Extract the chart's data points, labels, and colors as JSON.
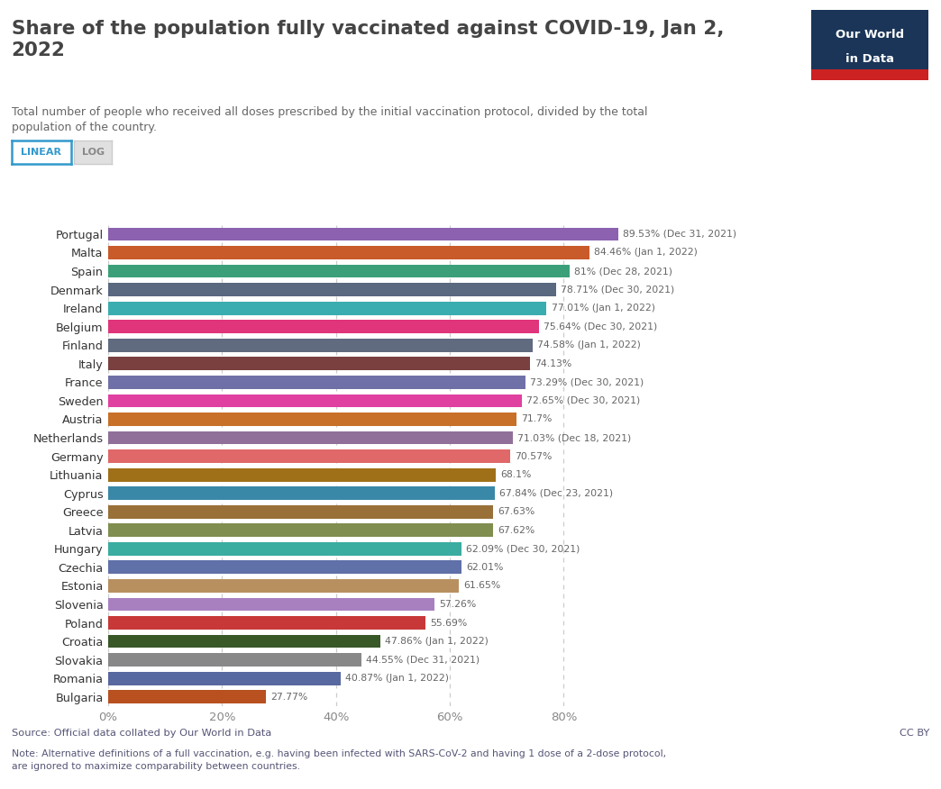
{
  "title": "Share of the population fully vaccinated against COVID-19, Jan 2,\n2022",
  "subtitle": "Total number of people who received all doses prescribed by the initial vaccination protocol, divided by the total\npopulation of the country.",
  "source": "Source: Official data collated by Our World in Data",
  "note": "Note: Alternative definitions of a full vaccination, e.g. having been infected with SARS-CoV-2 and having 1 dose of a 2-dose protocol,\nare ignored to maximize comparability between countries.",
  "cc_by": "CC BY",
  "countries": [
    "Portugal",
    "Malta",
    "Spain",
    "Denmark",
    "Ireland",
    "Belgium",
    "Finland",
    "Italy",
    "France",
    "Sweden",
    "Austria",
    "Netherlands",
    "Germany",
    "Lithuania",
    "Cyprus",
    "Greece",
    "Latvia",
    "Hungary",
    "Czechia",
    "Estonia",
    "Slovenia",
    "Poland",
    "Croatia",
    "Slovakia",
    "Romania",
    "Bulgaria"
  ],
  "values": [
    89.53,
    84.46,
    81.0,
    78.71,
    77.01,
    75.64,
    74.58,
    74.13,
    73.29,
    72.65,
    71.7,
    71.03,
    70.57,
    68.1,
    67.84,
    67.63,
    67.62,
    62.09,
    62.01,
    61.65,
    57.26,
    55.69,
    47.86,
    44.55,
    40.87,
    27.77
  ],
  "labels": [
    "89.53% (Dec 31, 2021)",
    "84.46% (Jan 1, 2022)",
    "81% (Dec 28, 2021)",
    "78.71% (Dec 30, 2021)",
    "77.01% (Jan 1, 2022)",
    "75.64% (Dec 30, 2021)",
    "74.58% (Jan 1, 2022)",
    "74.13%",
    "73.29% (Dec 30, 2021)",
    "72.65% (Dec 30, 2021)",
    "71.7%",
    "71.03% (Dec 18, 2021)",
    "70.57%",
    "68.1%",
    "67.84% (Dec 23, 2021)",
    "67.63%",
    "67.62%",
    "62.09% (Dec 30, 2021)",
    "62.01%",
    "61.65%",
    "57.26%",
    "55.69%",
    "47.86% (Jan 1, 2022)",
    "44.55% (Dec 31, 2021)",
    "40.87% (Jan 1, 2022)",
    "27.77%"
  ],
  "colors": [
    "#8B61B0",
    "#C95A2A",
    "#3BA07A",
    "#5A6880",
    "#3AADB0",
    "#E0357A",
    "#606B80",
    "#7A4040",
    "#7070A8",
    "#E040A0",
    "#C87028",
    "#907098",
    "#E06868",
    "#A07018",
    "#3A88A8",
    "#987038",
    "#808E50",
    "#3AACA0",
    "#6070A8",
    "#B89060",
    "#A880C0",
    "#C83838",
    "#385828",
    "#888888",
    "#5868A0",
    "#B85020"
  ],
  "xlim": [
    0,
    100
  ],
  "xticks": [
    0,
    20,
    40,
    60,
    80
  ],
  "xticklabels": [
    "0%",
    "20%",
    "40%",
    "60%",
    "80%"
  ],
  "background_color": "#ffffff",
  "bar_height": 0.72,
  "title_color": "#444444",
  "subtitle_color": "#666666",
  "label_color": "#666666",
  "ytick_color": "#333333",
  "xtick_color": "#888888",
  "grid_color": "#cccccc",
  "linear_btn_color": "#3399cc",
  "logo_bg": "#1a3558",
  "logo_red": "#cc2222"
}
